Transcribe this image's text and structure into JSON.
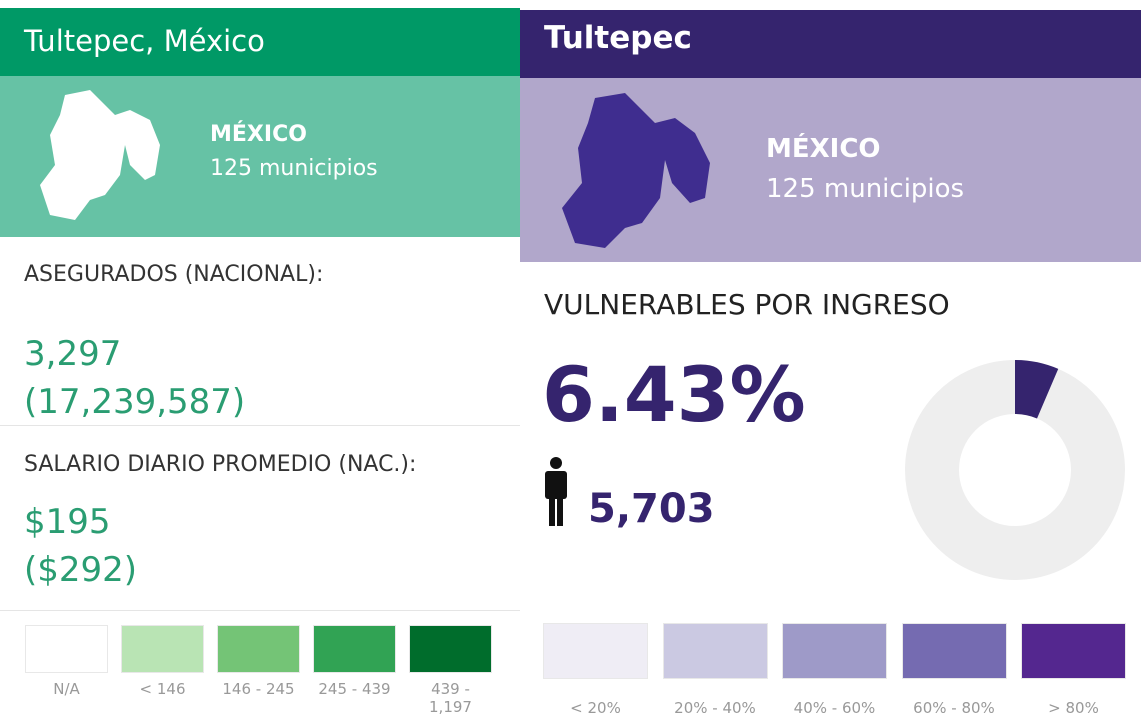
{
  "left": {
    "title": "Tultepec, México",
    "state": "MÉXICO",
    "municipalities": "125 municipios",
    "metrics": [
      {
        "label": "ASEGURADOS (NACIONAL):",
        "value": "3,297",
        "national": "(17,239,587)"
      },
      {
        "label": "SALARIO DIARIO PROMEDIO (NAC.):",
        "value": "$195",
        "national": "($292)"
      }
    ],
    "legend": [
      {
        "label": "N/A",
        "color": "#ffffff"
      },
      {
        "label": "< 146",
        "color": "#b9e4b4"
      },
      {
        "label": "146 - 245",
        "color": "#74c476"
      },
      {
        "label": "245 - 439",
        "color": "#31a354"
      },
      {
        "label": "439 - 1,197",
        "color": "#006d2c"
      }
    ]
  },
  "right": {
    "title": "Tultepec",
    "state": "MÉXICO",
    "municipalities": "125 municipios",
    "metric_label": "VULNERABLES POR INGRESO",
    "percent": {
      "value": 6.43,
      "label": "6.43%"
    },
    "people": "5,703",
    "legend": [
      {
        "label": "< 20%",
        "color": "#efedf5"
      },
      {
        "label": "20% - 40%",
        "color": "#cbc9e2"
      },
      {
        "label": "40% - 60%",
        "color": "#9e9ac8"
      },
      {
        "label": "60% - 80%",
        "color": "#756bb1"
      },
      {
        "label": "> 80%",
        "color": "#54278f"
      }
    ]
  }
}
